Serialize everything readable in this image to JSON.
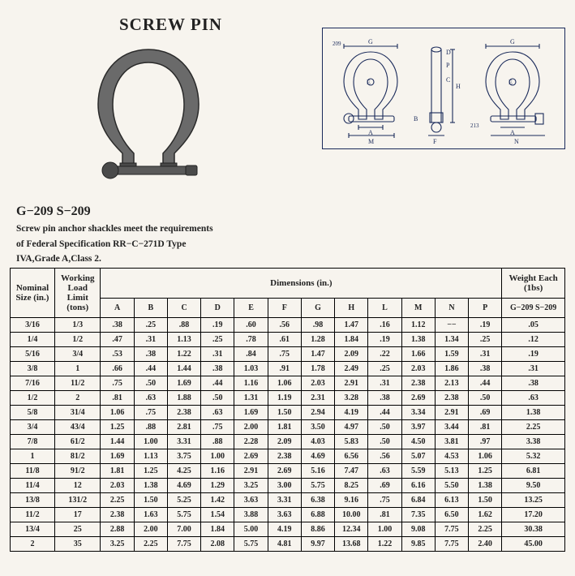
{
  "title": "SCREW PIN",
  "model_line": "G−209 S−209",
  "desc_lines": [
    "Screw pin anchor shackles meet the requirements",
    "of  Federal Specification RR−C−271D  Type",
    "IVA,Grade A,Class 2."
  ],
  "colors": {
    "background": "#f7f4ee",
    "text": "#222",
    "border": "#000000",
    "diagram_stroke": "#1a2a5a",
    "shackle_fill": "#6a6a6a",
    "shackle_dark": "#3a3a3a"
  },
  "diagram_labels": {
    "left_num": "209",
    "right_num": "213",
    "G": "G",
    "D": "D",
    "P": "P",
    "C": "C",
    "E": "E",
    "H": "H",
    "A": "A",
    "M": "M",
    "F": "F",
    "B": "B",
    "N": "N"
  },
  "table": {
    "header_groups": {
      "nominal": "Nominal Size (in.)",
      "wll": "Working Load Limit (tons)",
      "dimensions": "Dimensions (in.)",
      "weight": "Weight Each (1bs)"
    },
    "dim_cols": [
      "A",
      "B",
      "C",
      "D",
      "E",
      "F",
      "G",
      "H",
      "L",
      "M",
      "N",
      "P"
    ],
    "weight_col": "G−209 S−209",
    "rows": [
      {
        "nom": "3/16",
        "wll": "1/3",
        "A": ".38",
        "B": ".25",
        "C": ".88",
        "D": ".19",
        "E": ".60",
        "F": ".56",
        "G": ".98",
        "H": "1.47",
        "L": ".16",
        "M": "1.12",
        "N": "−−",
        "P": ".19",
        "wt": ".05"
      },
      {
        "nom": "1/4",
        "wll": "1/2",
        "A": ".47",
        "B": ".31",
        "C": "1.13",
        "D": ".25",
        "E": ".78",
        "F": ".61",
        "G": "1.28",
        "H": "1.84",
        "L": ".19",
        "M": "1.38",
        "N": "1.34",
        "P": ".25",
        "wt": ".12"
      },
      {
        "nom": "5/16",
        "wll": "3/4",
        "A": ".53",
        "B": ".38",
        "C": "1.22",
        "D": ".31",
        "E": ".84",
        "F": ".75",
        "G": "1.47",
        "H": "2.09",
        "L": ".22",
        "M": "1.66",
        "N": "1.59",
        "P": ".31",
        "wt": ".19"
      },
      {
        "nom": "3/8",
        "wll": "1",
        "A": ".66",
        "B": ".44",
        "C": "1.44",
        "D": ".38",
        "E": "1.03",
        "F": ".91",
        "G": "1.78",
        "H": "2.49",
        "L": ".25",
        "M": "2.03",
        "N": "1.86",
        "P": ".38",
        "wt": ".31"
      },
      {
        "nom": "7/16",
        "wll": "11/2",
        "A": ".75",
        "B": ".50",
        "C": "1.69",
        "D": ".44",
        "E": "1.16",
        "F": "1.06",
        "G": "2.03",
        "H": "2.91",
        "L": ".31",
        "M": "2.38",
        "N": "2.13",
        "P": ".44",
        "wt": ".38"
      },
      {
        "nom": "1/2",
        "wll": "2",
        "A": ".81",
        "B": ".63",
        "C": "1.88",
        "D": ".50",
        "E": "1.31",
        "F": "1.19",
        "G": "2.31",
        "H": "3.28",
        "L": ".38",
        "M": "2.69",
        "N": "2.38",
        "P": ".50",
        "wt": ".63"
      },
      {
        "nom": "5/8",
        "wll": "31/4",
        "A": "1.06",
        "B": ".75",
        "C": "2.38",
        "D": ".63",
        "E": "1.69",
        "F": "1.50",
        "G": "2.94",
        "H": "4.19",
        "L": ".44",
        "M": "3.34",
        "N": "2.91",
        "P": ".69",
        "wt": "1.38"
      },
      {
        "nom": "3/4",
        "wll": "43/4",
        "A": "1.25",
        "B": ".88",
        "C": "2.81",
        "D": ".75",
        "E": "2.00",
        "F": "1.81",
        "G": "3.50",
        "H": "4.97",
        "L": ".50",
        "M": "3.97",
        "N": "3.44",
        "P": ".81",
        "wt": "2.25"
      },
      {
        "nom": "7/8",
        "wll": "61/2",
        "A": "1.44",
        "B": "1.00",
        "C": "3.31",
        "D": ".88",
        "E": "2.28",
        "F": "2.09",
        "G": "4.03",
        "H": "5.83",
        "L": ".50",
        "M": "4.50",
        "N": "3.81",
        "P": ".97",
        "wt": "3.38"
      },
      {
        "nom": "1",
        "wll": "81/2",
        "A": "1.69",
        "B": "1.13",
        "C": "3.75",
        "D": "1.00",
        "E": "2.69",
        "F": "2.38",
        "G": "4.69",
        "H": "6.56",
        "L": ".56",
        "M": "5.07",
        "N": "4.53",
        "P": "1.06",
        "wt": "5.32"
      },
      {
        "nom": "11/8",
        "wll": "91/2",
        "A": "1.81",
        "B": "1.25",
        "C": "4.25",
        "D": "1.16",
        "E": "2.91",
        "F": "2.69",
        "G": "5.16",
        "H": "7.47",
        "L": ".63",
        "M": "5.59",
        "N": "5.13",
        "P": "1.25",
        "wt": "6.81"
      },
      {
        "nom": "11/4",
        "wll": "12",
        "A": "2.03",
        "B": "1.38",
        "C": "4.69",
        "D": "1.29",
        "E": "3.25",
        "F": "3.00",
        "G": "5.75",
        "H": "8.25",
        "L": ".69",
        "M": "6.16",
        "N": "5.50",
        "P": "1.38",
        "wt": "9.50"
      },
      {
        "nom": "13/8",
        "wll": "131/2",
        "A": "2.25",
        "B": "1.50",
        "C": "5.25",
        "D": "1.42",
        "E": "3.63",
        "F": "3.31",
        "G": "6.38",
        "H": "9.16",
        "L": ".75",
        "M": "6.84",
        "N": "6.13",
        "P": "1.50",
        "wt": "13.25"
      },
      {
        "nom": "11/2",
        "wll": "17",
        "A": "2.38",
        "B": "1.63",
        "C": "5.75",
        "D": "1.54",
        "E": "3.88",
        "F": "3.63",
        "G": "6.88",
        "H": "10.00",
        "L": ".81",
        "M": "7.35",
        "N": "6.50",
        "P": "1.62",
        "wt": "17.20"
      },
      {
        "nom": "13/4",
        "wll": "25",
        "A": "2.88",
        "B": "2.00",
        "C": "7.00",
        "D": "1.84",
        "E": "5.00",
        "F": "4.19",
        "G": "8.86",
        "H": "12.34",
        "L": "1.00",
        "M": "9.08",
        "N": "7.75",
        "P": "2.25",
        "wt": "30.38"
      },
      {
        "nom": "2",
        "wll": "35",
        "A": "3.25",
        "B": "2.25",
        "C": "7.75",
        "D": "2.08",
        "E": "5.75",
        "F": "4.81",
        "G": "9.97",
        "H": "13.68",
        "L": "1.22",
        "M": "9.85",
        "N": "7.75",
        "P": "2.40",
        "wt": "45.00"
      }
    ]
  }
}
